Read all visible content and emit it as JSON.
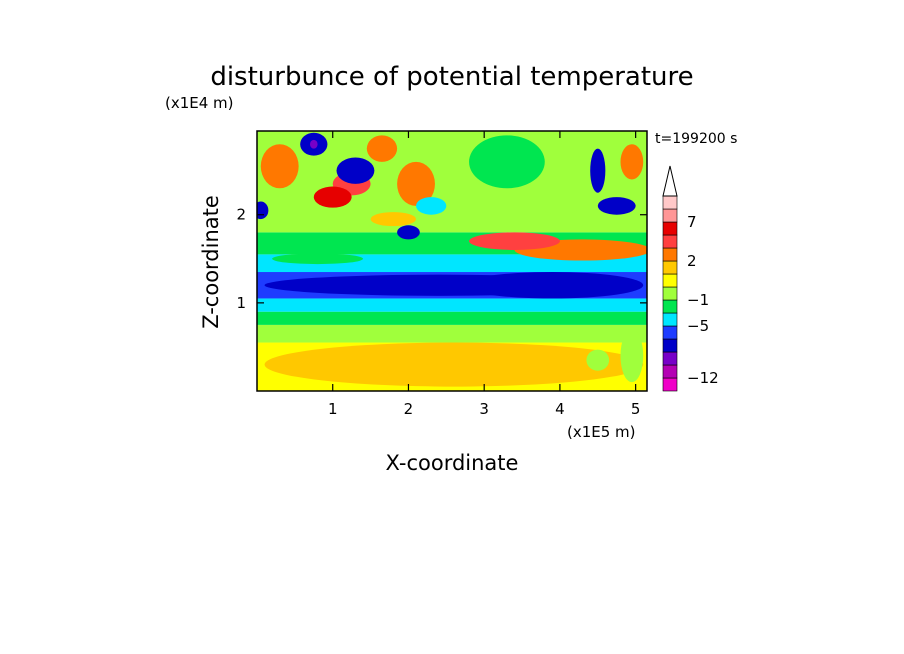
{
  "chart_data": {
    "type": "heatmap",
    "title": "disturbunce of potential temperature",
    "xlabel": "X-coordinate",
    "ylabel": "Z-coordinate",
    "x_unit": "(x1E5 m)",
    "y_unit": "(x1E4 m)",
    "time_label": "t=199200 s",
    "xlim": [
      0,
      5.15
    ],
    "ylim": [
      0,
      2.95
    ],
    "x_ticks": [
      1,
      2,
      3,
      4,
      5
    ],
    "y_ticks": [
      1,
      2
    ],
    "grid": false,
    "legend": "colorbar-right",
    "colorbar": {
      "levels": [
        {
          "color": "#f000c8"
        },
        {
          "color": "#b400b4"
        },
        {
          "color": "#7800c8"
        },
        {
          "color": "#0000c8"
        },
        {
          "color": "#1e3cff"
        },
        {
          "color": "#00e6ff"
        },
        {
          "color": "#00e650"
        },
        {
          "color": "#a0ff3c"
        },
        {
          "color": "#ffff00"
        },
        {
          "color": "#ffc800"
        },
        {
          "color": "#ff7800"
        },
        {
          "color": "#ff4040"
        },
        {
          "color": "#e60000"
        },
        {
          "color": "#ff9696"
        },
        {
          "color": "#ffc8c8"
        }
      ],
      "tick_labels": [
        {
          "label": "−12",
          "after_level": 0
        },
        {
          "label": "−5",
          "after_level": 4
        },
        {
          "label": "−1",
          "after_level": 6
        },
        {
          "label": "2",
          "after_level": 9
        },
        {
          "label": "7",
          "after_level": 12
        }
      ],
      "extend": "max"
    },
    "bands": [
      {
        "z": [
          0.0,
          0.55
        ],
        "level": 8
      },
      {
        "z": [
          0.55,
          0.75
        ],
        "level": 7
      },
      {
        "z": [
          0.75,
          0.9
        ],
        "level": 6
      },
      {
        "z": [
          0.9,
          1.05
        ],
        "level": 5
      },
      {
        "z": [
          1.05,
          1.35
        ],
        "level": 4
      },
      {
        "z": [
          1.35,
          1.55
        ],
        "level": 5
      },
      {
        "z": [
          1.55,
          1.8
        ],
        "level": 6
      },
      {
        "z": [
          1.8,
          2.95
        ],
        "level": 7
      }
    ],
    "features": [
      {
        "x": 2.4,
        "z": 1.2,
        "rx": 2.3,
        "rz": 0.12,
        "level": 3
      },
      {
        "x": 3.9,
        "z": 1.2,
        "rx": 1.2,
        "rz": 0.15,
        "level": 3
      },
      {
        "x": 2.6,
        "z": 0.3,
        "rx": 2.5,
        "rz": 0.25,
        "level": 9
      },
      {
        "x": 4.3,
        "z": 1.6,
        "rx": 0.9,
        "rz": 0.12,
        "level": 10
      },
      {
        "x": 3.4,
        "z": 1.7,
        "rx": 0.6,
        "rz": 0.1,
        "level": 11
      },
      {
        "x": 0.3,
        "z": 2.55,
        "rx": 0.25,
        "rz": 0.25,
        "level": 10
      },
      {
        "x": 0.75,
        "z": 2.8,
        "rx": 0.18,
        "rz": 0.13,
        "level": 3
      },
      {
        "x": 0.75,
        "z": 2.8,
        "rx": 0.05,
        "rz": 0.05,
        "level": 2
      },
      {
        "x": 1.25,
        "z": 2.35,
        "rx": 0.25,
        "rz": 0.13,
        "level": 11
      },
      {
        "x": 1.3,
        "z": 2.5,
        "rx": 0.25,
        "rz": 0.15,
        "level": 3
      },
      {
        "x": 1.0,
        "z": 2.2,
        "rx": 0.25,
        "rz": 0.12,
        "level": 12
      },
      {
        "x": 1.65,
        "z": 2.75,
        "rx": 0.2,
        "rz": 0.15,
        "level": 10
      },
      {
        "x": 2.1,
        "z": 2.35,
        "rx": 0.25,
        "rz": 0.25,
        "level": 10
      },
      {
        "x": 2.3,
        "z": 2.1,
        "rx": 0.2,
        "rz": 0.1,
        "level": 5
      },
      {
        "x": 2.0,
        "z": 1.8,
        "rx": 0.15,
        "rz": 0.08,
        "level": 3
      },
      {
        "x": 0.05,
        "z": 2.05,
        "rx": 0.1,
        "rz": 0.1,
        "level": 3
      },
      {
        "x": 4.75,
        "z": 2.1,
        "rx": 0.25,
        "rz": 0.1,
        "level": 3
      },
      {
        "x": 4.5,
        "z": 2.5,
        "rx": 0.1,
        "rz": 0.25,
        "level": 3
      },
      {
        "x": 4.0,
        "z": 2.3,
        "rx": 0.4,
        "rz": 0.3,
        "level": 7
      },
      {
        "x": 3.3,
        "z": 2.6,
        "rx": 0.5,
        "rz": 0.3,
        "level": 6
      },
      {
        "x": 4.95,
        "z": 2.6,
        "rx": 0.15,
        "rz": 0.2,
        "level": 10
      },
      {
        "x": 1.8,
        "z": 1.95,
        "rx": 0.3,
        "rz": 0.08,
        "level": 9
      },
      {
        "x": 0.8,
        "z": 1.5,
        "rx": 0.6,
        "rz": 0.06,
        "level": 6
      },
      {
        "x": 4.95,
        "z": 0.4,
        "rx": 0.15,
        "rz": 0.3,
        "level": 7
      },
      {
        "x": 4.5,
        "z": 0.35,
        "rx": 0.15,
        "rz": 0.12,
        "level": 7
      }
    ]
  }
}
